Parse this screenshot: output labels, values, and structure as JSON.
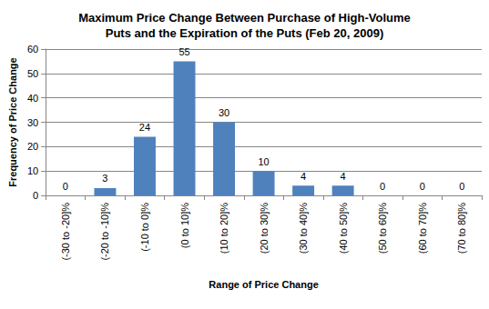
{
  "chart_data": {
    "type": "bar",
    "title": "Maximum Price Change Between Purchase of High-Volume\nPuts and the Expiration of the Puts (Feb 20, 2009)",
    "x_label": "Range of Price Change",
    "y_label": "Frequency of Price Change",
    "categories": [
      "(-30 to -20]%",
      "(-20 to -10]%",
      "(-10 to 0]%",
      "(0 to 10]%",
      "(10 to 20]%",
      "(20 to 30]%",
      "(30 to 40]%",
      "(40 to 50]%",
      "(50 to 60]%",
      "(60 to 70]%",
      "(70 to 80]%"
    ],
    "values": [
      0,
      3,
      24,
      55,
      30,
      10,
      4,
      4,
      0,
      0,
      0
    ],
    "color": "#4f81bd",
    "ylim": [
      0,
      60
    ],
    "yticks": [
      0,
      10,
      20,
      30,
      40,
      50,
      60
    ],
    "grid": true,
    "data_labels": true
  }
}
